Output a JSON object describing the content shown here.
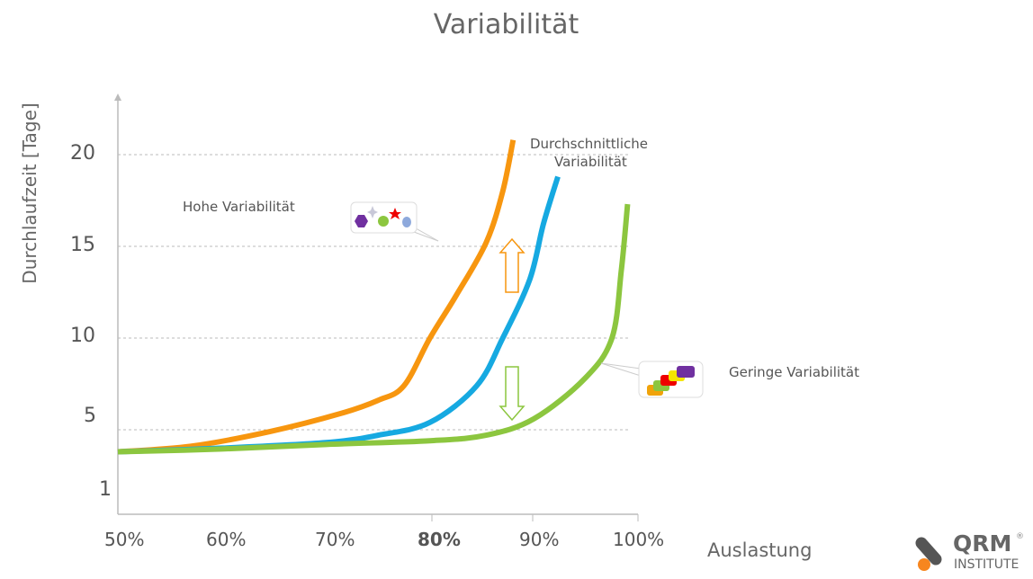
{
  "chart_data": {
    "type": "line",
    "title": "Variabilität",
    "xlabel": "Auslastung",
    "ylabel": "Durchlaufzeit [Tage]",
    "x_ticks": [
      "50%",
      "60%",
      "70%",
      "80%",
      "90%",
      "100%"
    ],
    "y_ticks": [
      "20",
      "15",
      "10",
      "5",
      "1"
    ],
    "xlim": [
      50,
      100
    ],
    "ylim": [
      1,
      22
    ],
    "grid": "horizontal dashed",
    "series": [
      {
        "name": "Hohe Variabilität",
        "color": "#f7960f",
        "x": [
          50,
          57,
          64.6,
          71.5,
          75,
          77.5,
          80,
          82.5,
          85.4,
          87,
          88
        ],
        "y": [
          3.8,
          4.1,
          4.9,
          5.9,
          6.6,
          7.4,
          10,
          12.3,
          15.2,
          18,
          20.8
        ]
      },
      {
        "name": "Durchschnittliche Variabilität",
        "color": "#16a9e1",
        "x": [
          50,
          60,
          70,
          75,
          80,
          84.5,
          87,
          89.6,
          90.9,
          92.3
        ],
        "y": [
          3.8,
          4.0,
          4.3,
          4.7,
          5.4,
          7.4,
          10,
          13.2,
          16.2,
          18.8
        ]
      },
      {
        "name": "Geringe Variabilität",
        "color": "#8cc63f",
        "x": [
          50,
          60,
          70,
          80,
          85.4,
          90,
          94.9,
          97.5,
          98.4,
          99
        ],
        "y": [
          3.8,
          3.95,
          4.2,
          4.4,
          4.7,
          5.6,
          7.8,
          10,
          13.7,
          17.3
        ]
      }
    ],
    "annotations": [
      "Hohe Variabilität",
      "Durchschnittliche Variabilität",
      "Geringe Variabilität"
    ]
  },
  "labels": {
    "high": "Hohe Variabilität",
    "avg_line1": "Durchschnittliche",
    "avg_line2": "Variabilität",
    "low": "Geringe Variabilität"
  },
  "logo": {
    "name": "QRM",
    "sub": "INSTITUTE",
    "mark": "®"
  }
}
